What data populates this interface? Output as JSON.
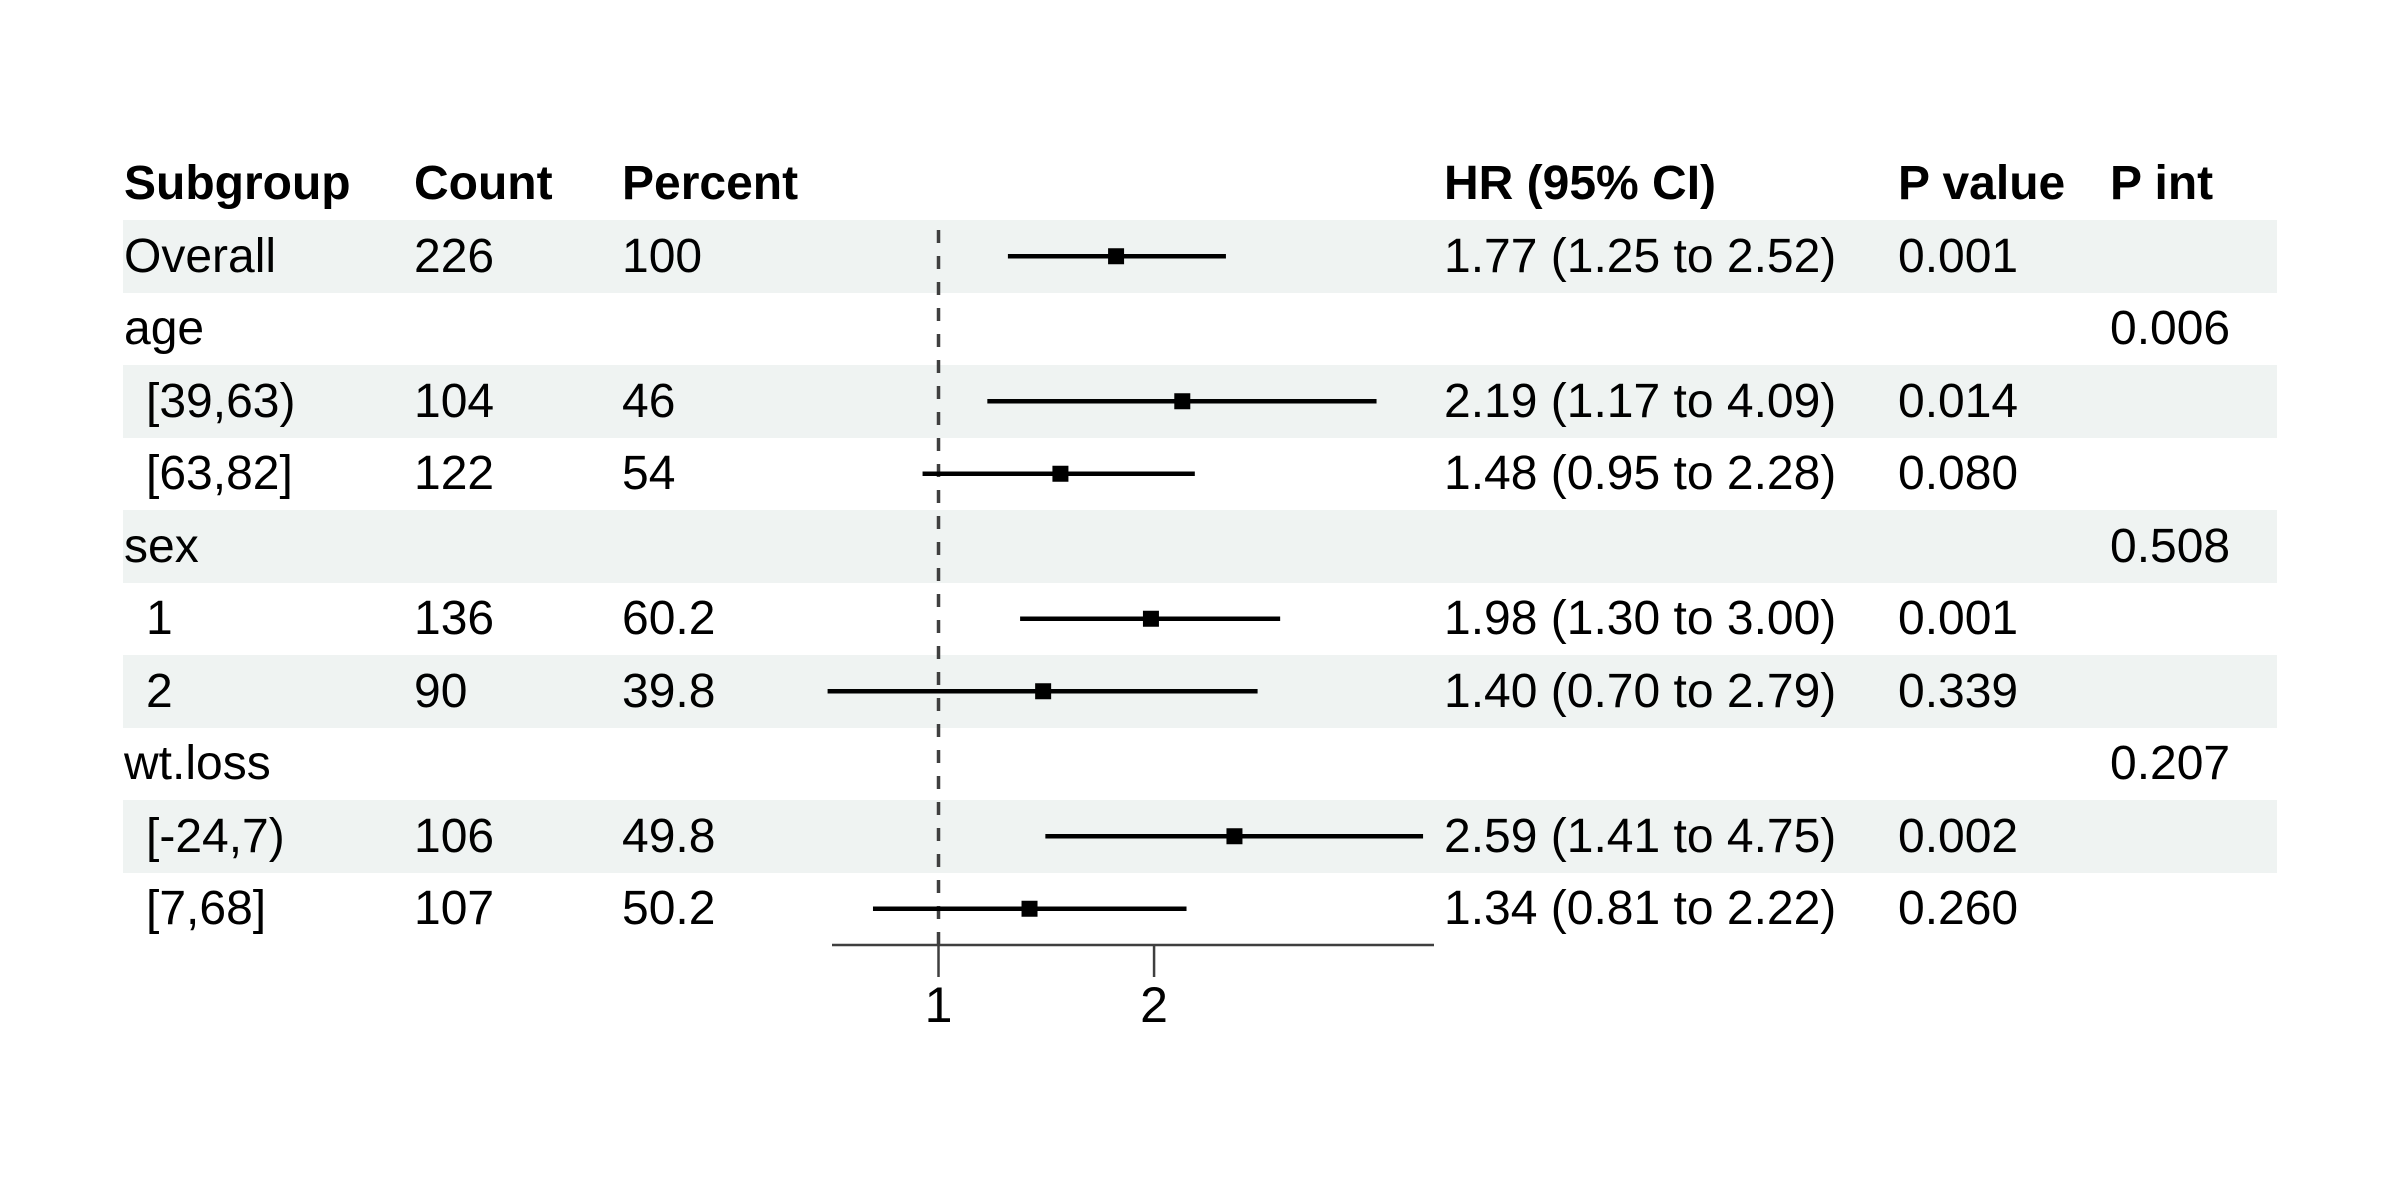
{
  "header": {
    "subgroup": "Subgroup",
    "count": "Count",
    "percent": "Percent",
    "hr": "HR (95% CI)",
    "p_value": "P value",
    "p_int": "P int"
  },
  "chart_data": {
    "type": "forest",
    "x_scale": "log",
    "xlim": [
      0.71,
      4.92
    ],
    "x_ticks": [
      1,
      2
    ],
    "ref_line": 1,
    "legend_position": "none",
    "grid": false,
    "stripe_color": "#eff3f2",
    "axis_color": "#3f3f3f",
    "marker_color": "#000000",
    "ci_color": "#000000",
    "rows": [
      {
        "subgroup": "Overall",
        "level": 0,
        "count": "226",
        "percent": "100",
        "hr_ci": "1.77 (1.25 to 2.52)",
        "p_value": "0.001",
        "p_int": "",
        "est": 1.77,
        "low": 1.25,
        "high": 2.52
      },
      {
        "subgroup": "age",
        "level": 0,
        "count": "",
        "percent": "",
        "hr_ci": "",
        "p_value": "",
        "p_int": "0.006",
        "est": null,
        "low": null,
        "high": null
      },
      {
        "subgroup": "[39,63)",
        "level": 1,
        "count": "104",
        "percent": "46",
        "hr_ci": "2.19 (1.17 to 4.09)",
        "p_value": "0.014",
        "p_int": "",
        "est": 2.19,
        "low": 1.17,
        "high": 4.09
      },
      {
        "subgroup": "[63,82]",
        "level": 1,
        "count": "122",
        "percent": "54",
        "hr_ci": "1.48 (0.95 to 2.28)",
        "p_value": "0.080",
        "p_int": "",
        "est": 1.48,
        "low": 0.95,
        "high": 2.28
      },
      {
        "subgroup": "sex",
        "level": 0,
        "count": "",
        "percent": "",
        "hr_ci": "",
        "p_value": "",
        "p_int": "0.508",
        "est": null,
        "low": null,
        "high": null
      },
      {
        "subgroup": "1",
        "level": 1,
        "count": "136",
        "percent": "60.2",
        "hr_ci": "1.98 (1.30 to 3.00)",
        "p_value": "0.001",
        "p_int": "",
        "est": 1.98,
        "low": 1.3,
        "high": 3.0
      },
      {
        "subgroup": "2",
        "level": 1,
        "count": "90",
        "percent": "39.8",
        "hr_ci": "1.40 (0.70 to 2.79)",
        "p_value": "0.339",
        "p_int": "",
        "est": 1.4,
        "low": 0.7,
        "high": 2.79
      },
      {
        "subgroup": "wt.loss",
        "level": 0,
        "count": "",
        "percent": "",
        "hr_ci": "",
        "p_value": "",
        "p_int": "0.207",
        "est": null,
        "low": null,
        "high": null
      },
      {
        "subgroup": "[-24,7)",
        "level": 1,
        "count": "106",
        "percent": "49.8",
        "hr_ci": "2.59 (1.41 to 4.75)",
        "p_value": "0.002",
        "p_int": "",
        "est": 2.59,
        "low": 1.41,
        "high": 4.75
      },
      {
        "subgroup": "[7,68]",
        "level": 1,
        "count": "107",
        "percent": "50.2",
        "hr_ci": "1.34 (0.81 to 2.22)",
        "p_value": "0.260",
        "p_int": "",
        "est": 1.34,
        "low": 0.81,
        "high": 2.22
      }
    ]
  }
}
